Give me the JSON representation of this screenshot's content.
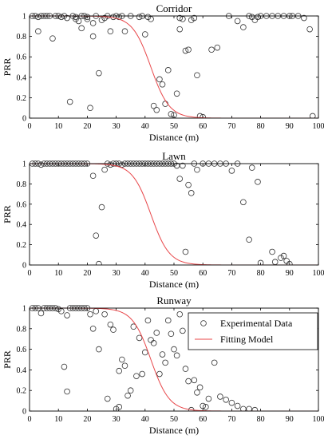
{
  "chart_data": [
    {
      "type": "scatter",
      "title": "Corridor",
      "xlabel": "Distance (m)",
      "ylabel": "PRR",
      "xlim": [
        0,
        100
      ],
      "ylim": [
        0,
        1
      ],
      "xticks": [
        0,
        10,
        20,
        30,
        40,
        50,
        60,
        70,
        80,
        90,
        100
      ],
      "yticks": [
        0,
        0.2,
        0.4,
        0.6,
        0.8,
        1
      ],
      "yticklabels": [
        "0",
        "0.2",
        "0.4",
        "0.6",
        "0.8",
        "1"
      ],
      "series": [
        {
          "name": "Experimental Data",
          "kind": "markers",
          "points": [
            [
              1,
              1
            ],
            [
              2,
              1
            ],
            [
              3,
              0.99
            ],
            [
              3,
              0.85
            ],
            [
              4,
              1
            ],
            [
              5,
              1
            ],
            [
              6,
              1
            ],
            [
              7,
              1
            ],
            [
              8,
              0.78
            ],
            [
              9,
              1
            ],
            [
              10,
              1
            ],
            [
              11,
              0.99
            ],
            [
              12,
              1
            ],
            [
              13,
              0.98
            ],
            [
              14,
              0.16
            ],
            [
              15,
              1
            ],
            [
              16,
              0.99
            ],
            [
              16,
              0.97
            ],
            [
              17,
              0.95
            ],
            [
              18,
              0.88
            ],
            [
              18,
              1
            ],
            [
              19,
              1
            ],
            [
              20,
              0.99
            ],
            [
              20,
              0.97
            ],
            [
              21,
              0.1
            ],
            [
              22,
              0.8
            ],
            [
              22,
              0.93
            ],
            [
              23,
              1
            ],
            [
              24,
              0.44
            ],
            [
              25,
              0.96
            ],
            [
              26,
              0.98
            ],
            [
              27,
              1
            ],
            [
              28,
              0.85
            ],
            [
              29,
              0.99
            ],
            [
              30,
              1
            ],
            [
              31,
              0.99
            ],
            [
              32,
              1
            ],
            [
              33,
              0.85
            ],
            [
              35,
              1
            ],
            [
              38,
              0.99
            ],
            [
              39,
              1
            ],
            [
              40,
              0.82
            ],
            [
              41,
              0.99
            ],
            [
              42,
              0.97
            ],
            [
              43,
              0.12
            ],
            [
              44,
              0.08
            ],
            [
              45,
              0.38
            ],
            [
              46,
              0.33
            ],
            [
              47,
              0.14
            ],
            [
              48,
              0.47
            ],
            [
              49,
              0.04
            ],
            [
              50,
              0.03
            ],
            [
              51,
              0.24
            ],
            [
              52,
              0.87
            ],
            [
              52,
              0.98
            ],
            [
              53,
              0.97
            ],
            [
              54,
              0.66
            ],
            [
              55,
              0.67
            ],
            [
              56,
              0.96
            ],
            [
              57,
              0.98
            ],
            [
              58,
              0.42
            ],
            [
              59,
              0.02
            ],
            [
              60,
              0.01
            ],
            [
              63,
              0.67
            ],
            [
              65,
              0.69
            ],
            [
              69,
              1
            ],
            [
              72,
              0.95
            ],
            [
              74,
              0.89
            ],
            [
              76,
              1
            ],
            [
              77,
              0.99
            ],
            [
              78,
              0.96
            ],
            [
              79,
              0.99
            ],
            [
              80,
              1
            ],
            [
              82,
              1
            ],
            [
              84,
              1
            ],
            [
              86,
              1
            ],
            [
              88,
              1
            ],
            [
              90,
              1
            ],
            [
              91,
              1
            ],
            [
              93,
              1
            ],
            [
              95,
              0.98
            ],
            [
              97,
              0.87
            ],
            [
              98,
              0.02
            ]
          ]
        },
        {
          "name": "Fitting Model",
          "kind": "logistic",
          "x0": 42,
          "k": 3.2
        }
      ]
    },
    {
      "type": "scatter",
      "title": "Lawn",
      "xlabel": "Distance (m)",
      "ylabel": "PRR",
      "xlim": [
        0,
        100
      ],
      "ylim": [
        0,
        1
      ],
      "xticks": [
        0,
        10,
        20,
        30,
        40,
        50,
        60,
        70,
        80,
        90,
        100
      ],
      "yticks": [
        0,
        0.2,
        0.4,
        0.6,
        0.8,
        1
      ],
      "yticklabels": [
        "0",
        "0.2",
        "0.4",
        "0.6",
        "0.8",
        "1"
      ],
      "series": [
        {
          "name": "Experimental Data",
          "kind": "markers",
          "points": [
            [
              1,
              1
            ],
            [
              2,
              1
            ],
            [
              3,
              1
            ],
            [
              4,
              0.99
            ],
            [
              5,
              1
            ],
            [
              6,
              1
            ],
            [
              7,
              1
            ],
            [
              8,
              1
            ],
            [
              9,
              1
            ],
            [
              10,
              1
            ],
            [
              11,
              1
            ],
            [
              12,
              1
            ],
            [
              13,
              1
            ],
            [
              14,
              1
            ],
            [
              15,
              1
            ],
            [
              16,
              1
            ],
            [
              17,
              1
            ],
            [
              18,
              1
            ],
            [
              19,
              1
            ],
            [
              20,
              1
            ],
            [
              22,
              0.88
            ],
            [
              23,
              0.29
            ],
            [
              24,
              0.01
            ],
            [
              25,
              0.57
            ],
            [
              26,
              0.94
            ],
            [
              27,
              1
            ],
            [
              28,
              0.99
            ],
            [
              29,
              1
            ],
            [
              30,
              1
            ],
            [
              31,
              1
            ],
            [
              32,
              0.99
            ],
            [
              33,
              1
            ],
            [
              34,
              1
            ],
            [
              35,
              1
            ],
            [
              36,
              1
            ],
            [
              37,
              1
            ],
            [
              38,
              1
            ],
            [
              39,
              1
            ],
            [
              40,
              1
            ],
            [
              41,
              1
            ],
            [
              42,
              1
            ],
            [
              43,
              1
            ],
            [
              44,
              1
            ],
            [
              45,
              1
            ],
            [
              46,
              1
            ],
            [
              47,
              1
            ],
            [
              48,
              1
            ],
            [
              49,
              1
            ],
            [
              50,
              1
            ],
            [
              51,
              0.98
            ],
            [
              52,
              0.85
            ],
            [
              53,
              0.98
            ],
            [
              54,
              0.13
            ],
            [
              55,
              0.79
            ],
            [
              56,
              0.71
            ],
            [
              57,
              1
            ],
            [
              58,
              0.94
            ],
            [
              60,
              1
            ],
            [
              62,
              1
            ],
            [
              64,
              1
            ],
            [
              66,
              1
            ],
            [
              68,
              1
            ],
            [
              70,
              0.93
            ],
            [
              72,
              1
            ],
            [
              74,
              0.62
            ],
            [
              76,
              0.25
            ],
            [
              77,
              0.96
            ],
            [
              79,
              0.82
            ],
            [
              80,
              0.02
            ],
            [
              84,
              0.13
            ],
            [
              85,
              0.03
            ],
            [
              87,
              0.07
            ],
            [
              88,
              0.09
            ],
            [
              89,
              0.04
            ],
            [
              90,
              0.01
            ]
          ]
        },
        {
          "name": "Fitting Model",
          "kind": "logistic",
          "x0": 42,
          "k": 3.2
        }
      ]
    },
    {
      "type": "scatter",
      "title": "Runway",
      "xlabel": "Distance (m)",
      "ylabel": "PRR",
      "xlim": [
        0,
        100
      ],
      "ylim": [
        0,
        1
      ],
      "xticks": [
        0,
        10,
        20,
        30,
        40,
        50,
        60,
        70,
        80,
        90,
        100
      ],
      "yticks": [
        0,
        0.2,
        0.4,
        0.6,
        0.8,
        1
      ],
      "yticklabels": [
        "0",
        "0.2",
        "0.4",
        "0.6",
        "0.8",
        "1"
      ],
      "legend": {
        "placement": "top-right",
        "entries": [
          "Experimental Data",
          "Fitting Model"
        ]
      },
      "series": [
        {
          "name": "Experimental Data",
          "kind": "markers",
          "points": [
            [
              1,
              1
            ],
            [
              2,
              1
            ],
            [
              3,
              1
            ],
            [
              4,
              0.95
            ],
            [
              5,
              1
            ],
            [
              6,
              1
            ],
            [
              7,
              1
            ],
            [
              8,
              1
            ],
            [
              9,
              1
            ],
            [
              10,
              0.99
            ],
            [
              11,
              0.97
            ],
            [
              12,
              0.43
            ],
            [
              13,
              0.93
            ],
            [
              13,
              0.19
            ],
            [
              14,
              1
            ],
            [
              15,
              1
            ],
            [
              16,
              1
            ],
            [
              17,
              1
            ],
            [
              18,
              1
            ],
            [
              19,
              1
            ],
            [
              20,
              1
            ],
            [
              21,
              0.94
            ],
            [
              22,
              0.8
            ],
            [
              23,
              0.97
            ],
            [
              24,
              0.6
            ],
            [
              26,
              0.94
            ],
            [
              27,
              0.12
            ],
            [
              28,
              0.84
            ],
            [
              29,
              0.79
            ],
            [
              30,
              0.02
            ],
            [
              31,
              0.04
            ],
            [
              31,
              0.39
            ],
            [
              32,
              0.5
            ],
            [
              33,
              0.44
            ],
            [
              34,
              0.15
            ],
            [
              35,
              0.2
            ],
            [
              36,
              0.82
            ],
            [
              37,
              0.34
            ],
            [
              38,
              0.71
            ],
            [
              39,
              0.36
            ],
            [
              40,
              0.57
            ],
            [
              41,
              0.88
            ],
            [
              42,
              0.69
            ],
            [
              43,
              0.66
            ],
            [
              44,
              0.76
            ],
            [
              45,
              0.36
            ],
            [
              46,
              0.55
            ],
            [
              47,
              0.47
            ],
            [
              48,
              0.88
            ],
            [
              49,
              0.75
            ],
            [
              50,
              0.6
            ],
            [
              51,
              0.54
            ],
            [
              52,
              0.94
            ],
            [
              53,
              0.78
            ],
            [
              54,
              0.41
            ],
            [
              55,
              0.29
            ],
            [
              56,
              0.01
            ],
            [
              57,
              0.3
            ],
            [
              58,
              0.18
            ],
            [
              59,
              0.23
            ],
            [
              60,
              0.05
            ],
            [
              61,
              0.04
            ],
            [
              62,
              0.12
            ],
            [
              64,
              0.47
            ],
            [
              66,
              0.14
            ],
            [
              68,
              0.11
            ],
            [
              70,
              0.08
            ],
            [
              72,
              0.05
            ],
            [
              74,
              0.02
            ],
            [
              76,
              0.02
            ],
            [
              78,
              0.01
            ]
          ]
        },
        {
          "name": "Fitting Model",
          "kind": "logistic",
          "x0": 42,
          "k": 3.2
        }
      ]
    }
  ]
}
